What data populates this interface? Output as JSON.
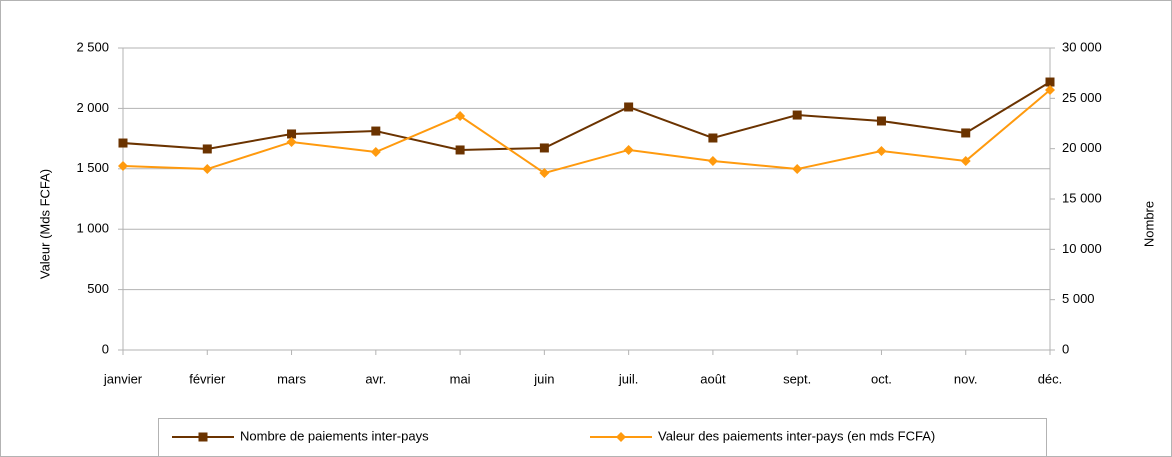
{
  "chart_data": {
    "type": "line",
    "categories": [
      "janvier",
      "février",
      "mars",
      "avr.",
      "mai",
      "juin",
      "juil.",
      "août",
      "sept.",
      "oct.",
      "nov.",
      "déc."
    ],
    "ylabel": "Valeur (Mds FCFA)",
    "y2label": "Nombre",
    "ylim": [
      0,
      2500
    ],
    "yticks": [
      0,
      500,
      {
        "value": 1000,
        "label": "1 000"
      },
      {
        "value": 1500,
        "label": "1 500"
      },
      {
        "value": 2000,
        "label": "2 000"
      },
      {
        "value": 2500,
        "label": "2 500"
      }
    ],
    "y2lim": [
      0,
      30000
    ],
    "y2ticks": [
      0,
      {
        "value": 5000,
        "label": "5 000"
      },
      {
        "value": 10000,
        "label": "10 000"
      },
      {
        "value": 15000,
        "label": "15 000"
      },
      {
        "value": 20000,
        "label": "20 000"
      },
      {
        "value": 25000,
        "label": "25 000"
      },
      {
        "value": 30000,
        "label": "30 000"
      }
    ],
    "grid": true,
    "series": [
      {
        "name": "Nombre de paiements inter-pays",
        "color": "#6b3300",
        "marker": "square",
        "axis": "y2",
        "values": [
          20560,
          19970,
          21460,
          21750,
          19870,
          20070,
          24140,
          21060,
          23340,
          22750,
          21560,
          26620
        ]
      },
      {
        "name": "Valeur des paiements inter-pays (en mds FCFA)",
        "color": "#ff9a0e",
        "marker": "diamond",
        "values": [
          1523,
          1498,
          1722,
          1639,
          1937,
          1465,
          1656,
          1565,
          1498,
          1647,
          1565,
          2152
        ]
      }
    ]
  }
}
